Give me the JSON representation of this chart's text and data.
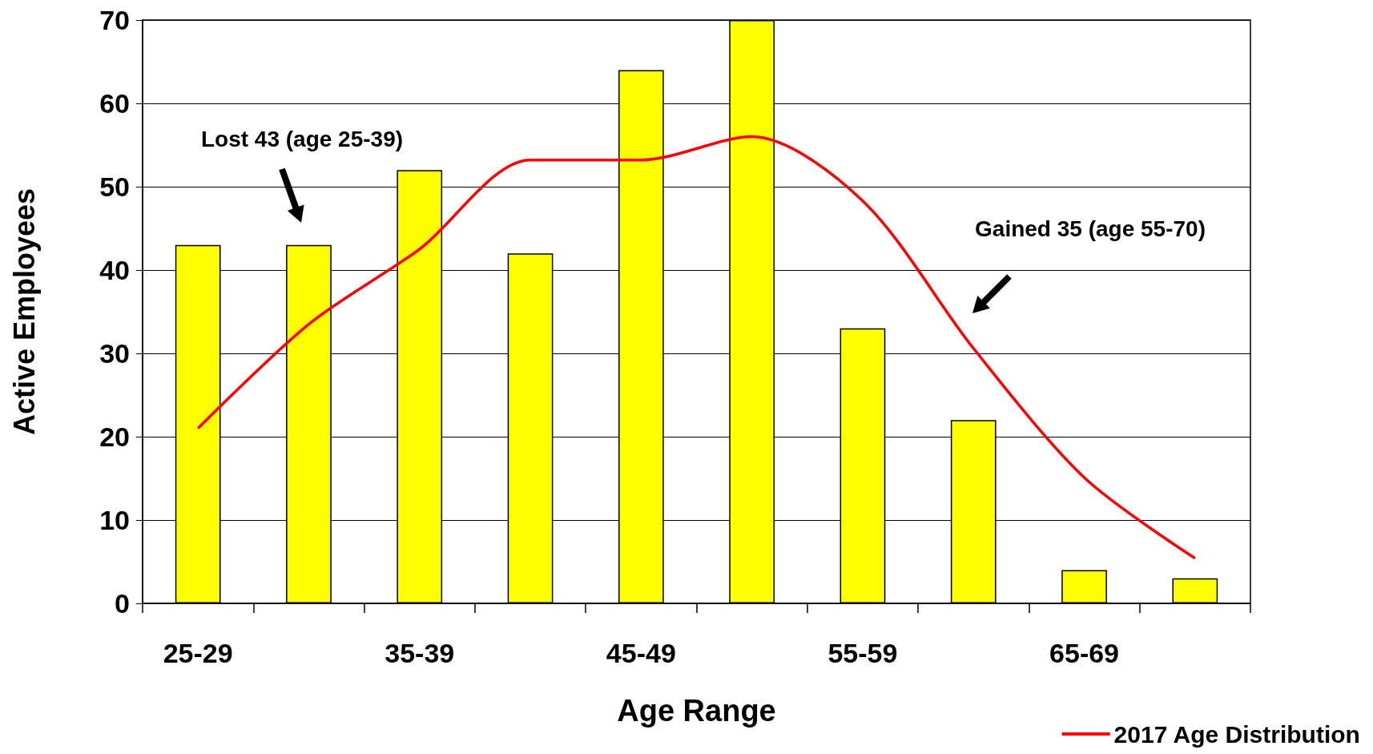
{
  "chart_data": {
    "type": "bar",
    "xlabel": "Age Range",
    "ylabel": "Active Employees",
    "categories": [
      "25-29",
      null,
      "35-39",
      null,
      "45-49",
      null,
      "55-59",
      null,
      "65-69",
      null
    ],
    "series": [
      {
        "color": "#ffff00",
        "values": [
          43,
          43,
          52,
          42,
          64,
          70,
          33,
          22,
          4,
          3
        ]
      },
      {
        "type": "line",
        "name": "2017 Age Distribution",
        "color": "#ff0000",
        "values": [
          21,
          33.5,
          42.5,
          53.2,
          53.2,
          56,
          48.3,
          30.6,
          15.1,
          5.4
        ]
      }
    ],
    "ylim": [
      0,
      70
    ],
    "yticks": [
      0,
      10,
      20,
      30,
      40,
      50,
      60,
      70
    ],
    "grid": "y",
    "legend": "bottom right",
    "marker": "none",
    "annotations": [
      "Lost 43 (age 25-39)",
      "Gained 35 (age 55-70)"
    ]
  }
}
